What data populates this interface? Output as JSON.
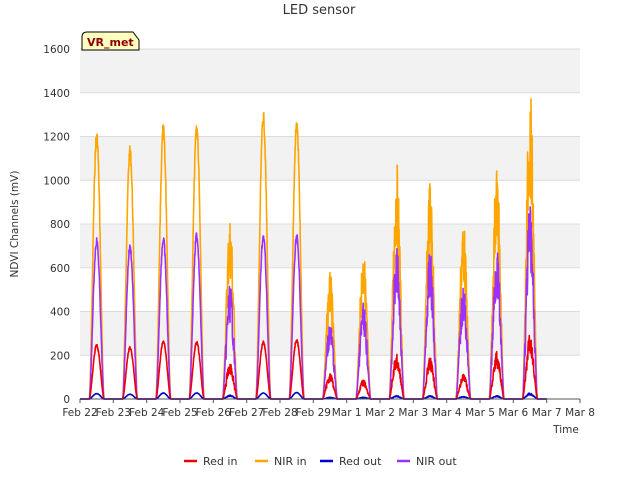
{
  "chart_data": {
    "type": "line",
    "title": "LED sensor",
    "xlabel": "Time",
    "ylabel": "NDVI Channels (mV)",
    "badge": "VR_met",
    "x_ticks": [
      "Feb 22",
      "Feb 23",
      "Feb 24",
      "Feb 25",
      "Feb 26",
      "Feb 27",
      "Feb 28",
      "Feb 29",
      "Mar 1",
      "Mar 2",
      "Mar 3",
      "Mar 4",
      "Mar 5",
      "Mar 6",
      "Mar 7",
      "Mar 8"
    ],
    "xlim": [
      0,
      15
    ],
    "ylim": [
      0,
      1600
    ],
    "y_ticks": [
      0,
      200,
      400,
      600,
      800,
      1000,
      1200,
      1400,
      1600
    ],
    "grid": true,
    "legend_position": "bottom",
    "day_peaks": {
      "days": [
        "Feb 22",
        "Feb 23",
        "Feb 24",
        "Feb 25",
        "Feb 26",
        "Feb 27",
        "Feb 28",
        "Feb 29",
        "Mar 1",
        "Mar 2",
        "Mar 3",
        "Mar 4",
        "Mar 5",
        "Mar 6"
      ],
      "note_unit": "mV"
    },
    "series": [
      {
        "name": "Red in",
        "color": "#ee0000",
        "peaks": [
          250,
          240,
          270,
          265,
          170,
          265,
          275,
          120,
          90,
          210,
          190,
          115,
          220,
          300
        ]
      },
      {
        "name": "NIR in",
        "color": "#ffa500",
        "peaks": [
          1230,
          1160,
          1260,
          1270,
          840,
          1320,
          1280,
          580,
          690,
          1080,
          1010,
          820,
          1080,
          1430
        ]
      },
      {
        "name": "Red out",
        "color": "#0000cc",
        "peaks": [
          25,
          22,
          28,
          28,
          18,
          28,
          30,
          8,
          8,
          15,
          15,
          12,
          15,
          28
        ]
      },
      {
        "name": "NIR out",
        "color": "#9b30ff",
        "peaks": [
          740,
          710,
          745,
          765,
          530,
          760,
          760,
          360,
          440,
          700,
          680,
          530,
          700,
          900
        ]
      }
    ]
  }
}
